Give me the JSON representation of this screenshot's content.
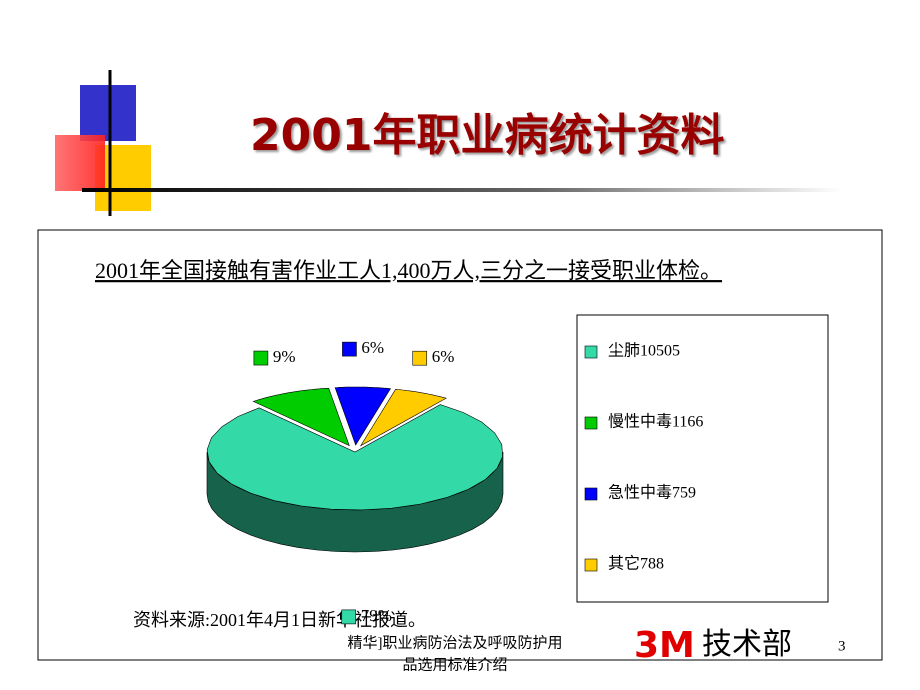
{
  "slide": {
    "title": "2001年职业病统计资料",
    "subtitle": "2001年全国接触有害作业工人1,400万人,三分之一接受职业体检。",
    "source": "资料来源:2001年4月1日新华社报道。",
    "footer": [
      "精华]职业病防治法及呼吸防护用",
      "品选用标准介绍"
    ],
    "logo": "3M",
    "logo_text": "技术部",
    "page_number": "3"
  },
  "chart_data": {
    "type": "pie",
    "categories": [
      "尘肺10505",
      "慢性中毒1166",
      "急性中毒759",
      "其它788"
    ],
    "values": [
      79,
      9,
      6,
      6
    ],
    "value_labels": [
      "79%",
      "9%",
      "6%",
      "6%"
    ],
    "colors": [
      "#33d9a6",
      "#00cc00",
      "#0000ff",
      "#ffcc00"
    ],
    "legend": "right"
  }
}
